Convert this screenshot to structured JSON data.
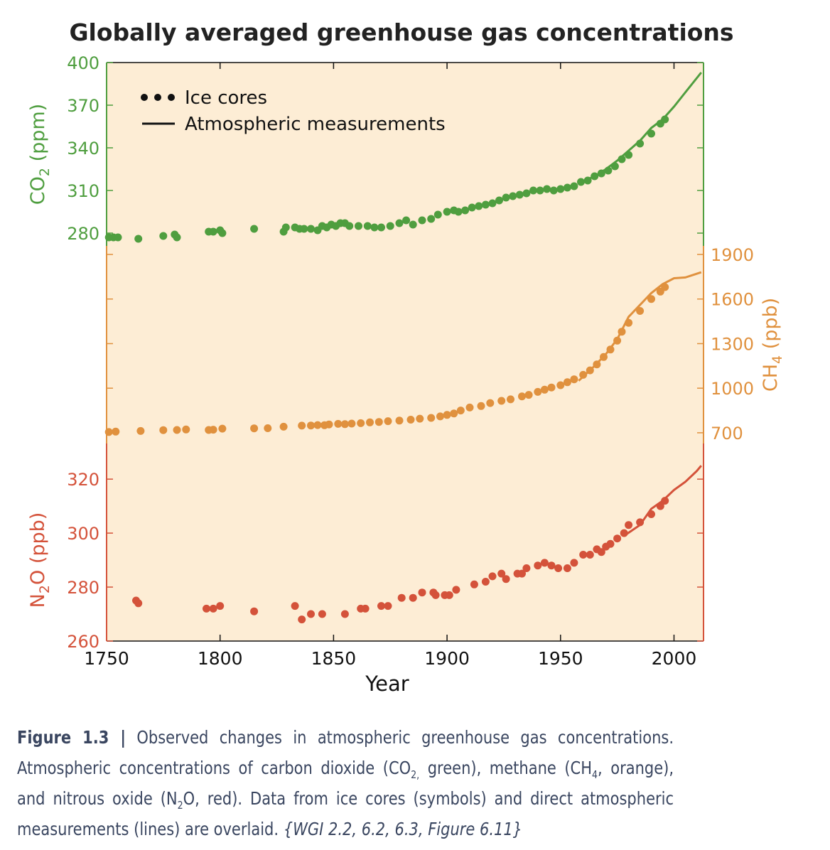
{
  "chart_data": {
    "type": "scatter",
    "title": "Globally averaged greenhouse gas concentrations",
    "xlabel": "Year",
    "xlim": [
      1750,
      2013
    ],
    "xticks": [
      1750,
      1800,
      1850,
      1900,
      1950,
      2000
    ],
    "legend": {
      "position": "top-left",
      "ice": "Ice cores",
      "atm": "Atmospheric measurements"
    },
    "panels": [
      {
        "key": "co2",
        "ylabel_main": "CO",
        "ylabel_sub": "2",
        "ylabel_unit": "(ppm)",
        "color": "#4f9e3f",
        "axis_side": "left",
        "ylim": [
          271,
          400
        ],
        "yticks": [
          280,
          310,
          340,
          370,
          400
        ],
        "ice_cores": [
          [
            1751,
            277
          ],
          [
            1753,
            277
          ],
          [
            1755,
            277
          ],
          [
            1764,
            276
          ],
          [
            1775,
            278
          ],
          [
            1780,
            279
          ],
          [
            1781,
            277
          ],
          [
            1795,
            281
          ],
          [
            1797,
            281
          ],
          [
            1800,
            282
          ],
          [
            1801,
            280
          ],
          [
            1815,
            283
          ],
          [
            1828,
            281
          ],
          [
            1829,
            284
          ],
          [
            1833,
            284
          ],
          [
            1835,
            283
          ],
          [
            1837,
            283
          ],
          [
            1840,
            283
          ],
          [
            1843,
            282
          ],
          [
            1845,
            285
          ],
          [
            1847,
            284
          ],
          [
            1849,
            286
          ],
          [
            1851,
            285
          ],
          [
            1853,
            287
          ],
          [
            1855,
            287
          ],
          [
            1857,
            285
          ],
          [
            1861,
            285
          ],
          [
            1865,
            285
          ],
          [
            1868,
            284
          ],
          [
            1871,
            284
          ],
          [
            1875,
            285
          ],
          [
            1879,
            287
          ],
          [
            1882,
            289
          ],
          [
            1885,
            286
          ],
          [
            1889,
            289
          ],
          [
            1893,
            290
          ],
          [
            1896,
            293
          ],
          [
            1900,
            295
          ],
          [
            1903,
            296
          ],
          [
            1905,
            295
          ],
          [
            1908,
            296
          ],
          [
            1911,
            298
          ],
          [
            1914,
            299
          ],
          [
            1917,
            300
          ],
          [
            1920,
            301
          ],
          [
            1923,
            303
          ],
          [
            1926,
            305
          ],
          [
            1929,
            306
          ],
          [
            1932,
            307
          ],
          [
            1935,
            308
          ],
          [
            1938,
            310
          ],
          [
            1941,
            310
          ],
          [
            1944,
            311
          ],
          [
            1947,
            310
          ],
          [
            1950,
            311
          ],
          [
            1953,
            312
          ],
          [
            1956,
            313
          ],
          [
            1959,
            316
          ],
          [
            1962,
            317
          ],
          [
            1965,
            320
          ],
          [
            1968,
            322
          ],
          [
            1971,
            324
          ],
          [
            1974,
            327
          ],
          [
            1977,
            332
          ],
          [
            1980,
            335
          ],
          [
            1985,
            343
          ],
          [
            1990,
            350
          ],
          [
            1994,
            357
          ],
          [
            1996,
            360
          ]
        ],
        "atmospheric": [
          [
            1958,
            315
          ],
          [
            1965,
            320
          ],
          [
            1970,
            325
          ],
          [
            1975,
            331
          ],
          [
            1980,
            338
          ],
          [
            1985,
            345
          ],
          [
            1990,
            354
          ],
          [
            1995,
            360
          ],
          [
            2000,
            369
          ],
          [
            2005,
            379
          ],
          [
            2010,
            389
          ],
          [
            2012,
            393
          ]
        ]
      },
      {
        "key": "ch4",
        "ylabel_main": "CH",
        "ylabel_sub": "4",
        "ylabel_unit": "(ppb)",
        "color": "#e0913e",
        "axis_side": "right",
        "ylim": [
          628,
          1900
        ],
        "yticks": [
          700,
          1000,
          1300,
          1600,
          1900
        ],
        "ice_cores": [
          [
            1751,
            705
          ],
          [
            1754,
            708
          ],
          [
            1765,
            712
          ],
          [
            1775,
            718
          ],
          [
            1781,
            719
          ],
          [
            1785,
            722
          ],
          [
            1795,
            719
          ],
          [
            1797,
            721
          ],
          [
            1801,
            728
          ],
          [
            1815,
            730
          ],
          [
            1821,
            731
          ],
          [
            1828,
            741
          ],
          [
            1836,
            748
          ],
          [
            1840,
            749
          ],
          [
            1843,
            752
          ],
          [
            1846,
            751
          ],
          [
            1848,
            756
          ],
          [
            1852,
            760
          ],
          [
            1855,
            758
          ],
          [
            1858,
            762
          ],
          [
            1862,
            765
          ],
          [
            1866,
            770
          ],
          [
            1870,
            773
          ],
          [
            1874,
            778
          ],
          [
            1879,
            782
          ],
          [
            1884,
            788
          ],
          [
            1888,
            795
          ],
          [
            1893,
            800
          ],
          [
            1897,
            810
          ],
          [
            1900,
            820
          ],
          [
            1903,
            830
          ],
          [
            1906,
            850
          ],
          [
            1910,
            870
          ],
          [
            1915,
            880
          ],
          [
            1919,
            900
          ],
          [
            1924,
            915
          ],
          [
            1928,
            925
          ],
          [
            1933,
            945
          ],
          [
            1936,
            955
          ],
          [
            1940,
            975
          ],
          [
            1943,
            990
          ],
          [
            1946,
            1005
          ],
          [
            1950,
            1020
          ],
          [
            1953,
            1040
          ],
          [
            1956,
            1060
          ],
          [
            1960,
            1090
          ],
          [
            1963,
            1120
          ],
          [
            1966,
            1160
          ],
          [
            1969,
            1210
          ],
          [
            1972,
            1260
          ],
          [
            1975,
            1320
          ],
          [
            1977,
            1380
          ],
          [
            1980,
            1440
          ],
          [
            1985,
            1520
          ],
          [
            1990,
            1600
          ],
          [
            1994,
            1650
          ],
          [
            1996,
            1680
          ]
        ],
        "atmospheric": [
          [
            1958,
            1050
          ],
          [
            1965,
            1150
          ],
          [
            1970,
            1230
          ],
          [
            1975,
            1330
          ],
          [
            1980,
            1480
          ],
          [
            1985,
            1560
          ],
          [
            1990,
            1640
          ],
          [
            1995,
            1700
          ],
          [
            2000,
            1740
          ],
          [
            2005,
            1745
          ],
          [
            2010,
            1770
          ],
          [
            2012,
            1780
          ]
        ]
      },
      {
        "key": "n2o",
        "ylabel_main": "N",
        "ylabel_sub": "2",
        "ylabel_tail": "O",
        "ylabel_unit": "(ppb)",
        "color": "#d4523a",
        "axis_side": "left",
        "ylim": [
          260,
          329
        ],
        "yticks": [
          260,
          280,
          300,
          320
        ],
        "ice_cores": [
          [
            1763,
            275
          ],
          [
            1764,
            274
          ],
          [
            1794,
            272
          ],
          [
            1797,
            272
          ],
          [
            1800,
            273
          ],
          [
            1815,
            271
          ],
          [
            1833,
            273
          ],
          [
            1836,
            268
          ],
          [
            1840,
            270
          ],
          [
            1845,
            270
          ],
          [
            1855,
            270
          ],
          [
            1862,
            272
          ],
          [
            1864,
            272
          ],
          [
            1871,
            273
          ],
          [
            1874,
            273
          ],
          [
            1880,
            276
          ],
          [
            1885,
            276
          ],
          [
            1889,
            278
          ],
          [
            1894,
            278
          ],
          [
            1895,
            277
          ],
          [
            1899,
            277
          ],
          [
            1901,
            277
          ],
          [
            1904,
            279
          ],
          [
            1912,
            281
          ],
          [
            1917,
            282
          ],
          [
            1920,
            284
          ],
          [
            1924,
            285
          ],
          [
            1926,
            283
          ],
          [
            1931,
            285
          ],
          [
            1933,
            285
          ],
          [
            1935,
            287
          ],
          [
            1940,
            288
          ],
          [
            1943,
            289
          ],
          [
            1946,
            288
          ],
          [
            1949,
            287
          ],
          [
            1953,
            287
          ],
          [
            1956,
            289
          ],
          [
            1960,
            292
          ],
          [
            1963,
            292
          ],
          [
            1966,
            294
          ],
          [
            1968,
            293
          ],
          [
            1970,
            295
          ],
          [
            1972,
            296
          ],
          [
            1975,
            298
          ],
          [
            1978,
            300
          ],
          [
            1980,
            303
          ],
          [
            1985,
            304
          ],
          [
            1990,
            307
          ],
          [
            1994,
            310
          ],
          [
            1996,
            312
          ]
        ],
        "atmospheric": [
          [
            1978,
            299
          ],
          [
            1985,
            303
          ],
          [
            1990,
            309
          ],
          [
            1995,
            312
          ],
          [
            2000,
            316
          ],
          [
            2005,
            319
          ],
          [
            2010,
            323
          ],
          [
            2012,
            325
          ]
        ]
      }
    ]
  },
  "caption": {
    "label": "Figure 1.3 |",
    "p1": " Observed changes in atmospheric greenhouse gas concentrations. Atmospheric concentrations of carbon dioxide (CO",
    "s1": "2,",
    "p2": " green), methane (CH",
    "s2": "4",
    "p3": ", orange), and nitrous oxide (N",
    "s3": "2",
    "p4": "O, red). Data from ice cores (symbols) and direct atmospheric measurements (lines) are overlaid. ",
    "ref": "{WGI 2.2, 6.2, 6.3, Figure 6.11}"
  }
}
